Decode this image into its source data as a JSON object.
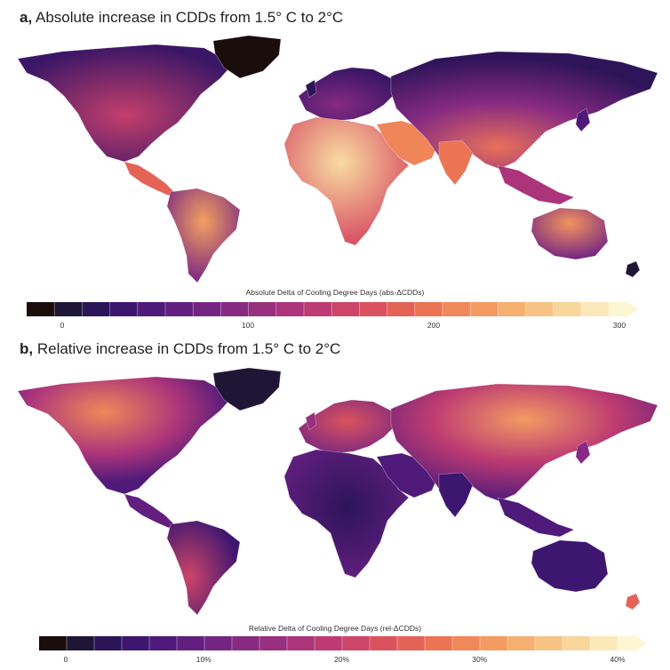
{
  "panel_a": {
    "title_letter": "a,",
    "title_text": "Absolute increase in CDDs from 1.5° C to 2°C",
    "colorbar_title": "Absolute Delta of Cooling Degree Days (abs-ΔCDDs)",
    "ticks": [
      {
        "value": 0,
        "label": "0"
      },
      {
        "value": 100,
        "label": "100"
      },
      {
        "value": 200,
        "label": "200"
      },
      {
        "value": 300,
        "label": "300"
      }
    ]
  },
  "panel_b": {
    "title_letter": "b,",
    "title_text": "Relative increase in CDDs from 1.5° C to 2°C",
    "colorbar_title": "Relative Delta of Cooling Degree Days (rel-ΔCDDs)",
    "ticks": [
      {
        "value": 0,
        "label": "0"
      },
      {
        "value": 10,
        "label": "10%"
      },
      {
        "value": 20,
        "label": "20%"
      },
      {
        "value": 30,
        "label": "30%"
      },
      {
        "value": 40,
        "label": "40%"
      }
    ]
  },
  "palette": [
    "#1a0d0c",
    "#1f1636",
    "#2b1457",
    "#3d1670",
    "#4f1a7a",
    "#621f80",
    "#742583",
    "#862a82",
    "#992f7f",
    "#ab347a",
    "#bd3b72",
    "#cd4568",
    "#db525e",
    "#e56256",
    "#ec7455",
    "#f08859",
    "#f39b62",
    "#f5af70",
    "#f7c384",
    "#f8d69c",
    "#fbe9b9",
    "#fdf6d2"
  ]
}
